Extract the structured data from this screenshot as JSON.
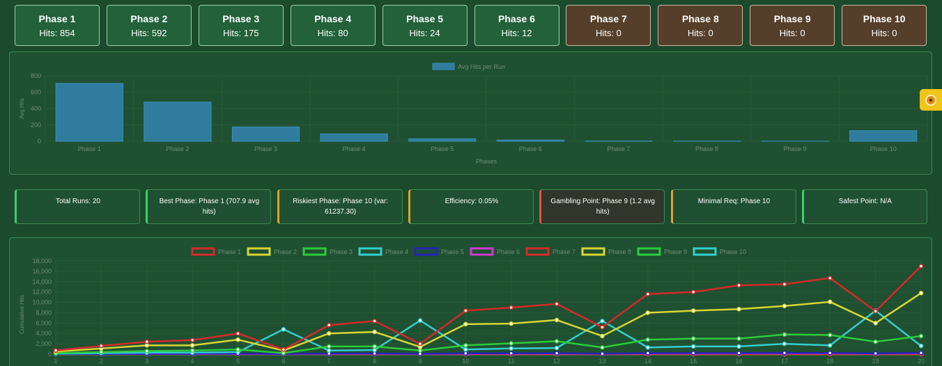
{
  "phases": [
    {
      "name": "Phase 1",
      "hits": "Hits: 854",
      "state": "active"
    },
    {
      "name": "Phase 2",
      "hits": "Hits: 592",
      "state": "active"
    },
    {
      "name": "Phase 3",
      "hits": "Hits: 175",
      "state": "active"
    },
    {
      "name": "Phase 4",
      "hits": "Hits: 80",
      "state": "active"
    },
    {
      "name": "Phase 5",
      "hits": "Hits: 24",
      "state": "active"
    },
    {
      "name": "Phase 6",
      "hits": "Hits: 12",
      "state": "active"
    },
    {
      "name": "Phase 7",
      "hits": "Hits: 0",
      "state": "zero"
    },
    {
      "name": "Phase 8",
      "hits": "Hits: 0",
      "state": "zero"
    },
    {
      "name": "Phase 9",
      "hits": "Hits: 0",
      "state": "zero"
    },
    {
      "name": "Phase 10",
      "hits": "Hits: 0",
      "state": "zero"
    }
  ],
  "stats": [
    {
      "text": "Total Runs: 20",
      "level": "good"
    },
    {
      "text": "Best Phase: Phase 1 (707.9 avg hits)",
      "level": "good"
    },
    {
      "text": "Riskiest Phase: Phase 10 (var: 61237.30)",
      "level": "warn"
    },
    {
      "text": "Efficiency: 0.05%",
      "level": "warn"
    },
    {
      "text": "Gambling Point: Phase 9 (1.2 avg hits)",
      "level": "danger"
    },
    {
      "text": "Minimal Req: Phase 10",
      "level": "warn"
    },
    {
      "text": "Safest Point: N/A",
      "level": "good"
    }
  ],
  "colors": {
    "good": "#3fcf6a",
    "warn": "#e0a22a",
    "danger": "#e0553a",
    "bar": "#2f7c9e",
    "axis_text": "#6d8d78",
    "grid": "#285a37"
  },
  "side_tab": {
    "icon": "sun-badge-icon"
  },
  "chart_data": [
    {
      "type": "bar",
      "title": "",
      "legend": [
        "Avg Hits per Run"
      ],
      "legend_position": "top-center",
      "categories": [
        "Phase 1",
        "Phase 2",
        "Phase 3",
        "Phase 4",
        "Phase 5",
        "Phase 6",
        "Phase 7",
        "Phase 8",
        "Phase 9",
        "Phase 10"
      ],
      "series": [
        {
          "name": "Avg Hits per Run",
          "values": [
            707.9,
            480,
            175,
            90,
            30,
            15,
            3,
            2,
            1.2,
            130
          ]
        }
      ],
      "xlabel": "Phases",
      "ylabel": "Avg Hits",
      "ylim": [
        0,
        800
      ],
      "yticks": [
        "0",
        "200",
        "400",
        "600",
        "800"
      ],
      "grid": true
    },
    {
      "type": "line",
      "title": "",
      "legend_position": "top-center",
      "x": [
        "1",
        "2",
        "3",
        "4",
        "5",
        "6",
        "7",
        "8",
        "9",
        "10",
        "11",
        "12",
        "13",
        "14",
        "15",
        "16",
        "17",
        "18",
        "19",
        "20"
      ],
      "xlabel": "",
      "ylabel": "Cumulative Hits",
      "ylim": [
        0,
        18000
      ],
      "yticks": [
        "0",
        "2,000",
        "4,000",
        "6,000",
        "8,000",
        "10,000",
        "12,000",
        "14,000",
        "16,000",
        "18,000"
      ],
      "grid": true,
      "series": [
        {
          "name": "Phase 1",
          "color": "#d62a2a",
          "values": [
            700,
            1600,
            2400,
            2700,
            4000,
            900,
            5600,
            6400,
            2000,
            8400,
            9000,
            9700,
            5200,
            11600,
            12000,
            13300,
            13500,
            14700,
            8300,
            17000
          ]
        },
        {
          "name": "Phase 2",
          "color": "#d9d634",
          "values": [
            500,
            1100,
            1700,
            1700,
            2800,
            700,
            4000,
            4300,
            1400,
            5800,
            5900,
            6600,
            3500,
            8000,
            8400,
            8700,
            9300,
            10100,
            6000,
            11800
          ]
        },
        {
          "name": "Phase 3",
          "color": "#2ccc3c",
          "values": [
            200,
            400,
            600,
            700,
            900,
            200,
            1500,
            1500,
            700,
            1700,
            2100,
            2500,
            1300,
            2800,
            3000,
            3000,
            3800,
            3700,
            2400,
            3500
          ]
        },
        {
          "name": "Phase 4",
          "color": "#33cfcf",
          "values": [
            100,
            200,
            300,
            300,
            400,
            4800,
            700,
            800,
            6500,
            900,
            1100,
            1200,
            6400,
            1300,
            1500,
            1500,
            2000,
            1700,
            8400,
            1600
          ]
        },
        {
          "name": "Phase 5",
          "color": "#2424b8",
          "values": [
            20,
            40,
            60,
            80,
            100,
            50,
            120,
            140,
            60,
            160,
            170,
            180,
            100,
            200,
            210,
            220,
            230,
            240,
            150,
            260
          ]
        },
        {
          "name": "Phase 6",
          "color": "#d03ad0",
          "values": [
            10,
            20,
            30,
            40,
            50,
            30,
            60,
            70,
            30,
            80,
            90,
            100,
            60,
            110,
            120,
            130,
            140,
            150,
            90,
            160
          ]
        },
        {
          "name": "Phase 7",
          "color": "#d62a2a",
          "values": [
            0,
            0,
            0,
            0,
            0,
            0,
            0,
            0,
            0,
            0,
            0,
            0,
            0,
            0,
            0,
            0,
            0,
            0,
            0,
            0
          ]
        },
        {
          "name": "Phase 8",
          "color": "#d9d634",
          "values": [
            0,
            0,
            0,
            0,
            0,
            0,
            0,
            0,
            0,
            0,
            0,
            0,
            0,
            0,
            0,
            0,
            0,
            0,
            0,
            0
          ]
        },
        {
          "name": "Phase 9",
          "color": "#2ccc3c",
          "values": [
            0,
            0,
            0,
            0,
            0,
            0,
            0,
            0,
            0,
            0,
            0,
            0,
            0,
            0,
            0,
            0,
            0,
            0,
            0,
            0
          ]
        },
        {
          "name": "Phase 10",
          "color": "#33cfcf",
          "values": [
            0,
            0,
            0,
            0,
            0,
            0,
            0,
            0,
            0,
            0,
            0,
            0,
            0,
            0,
            0,
            0,
            0,
            0,
            0,
            0
          ]
        }
      ]
    }
  ]
}
